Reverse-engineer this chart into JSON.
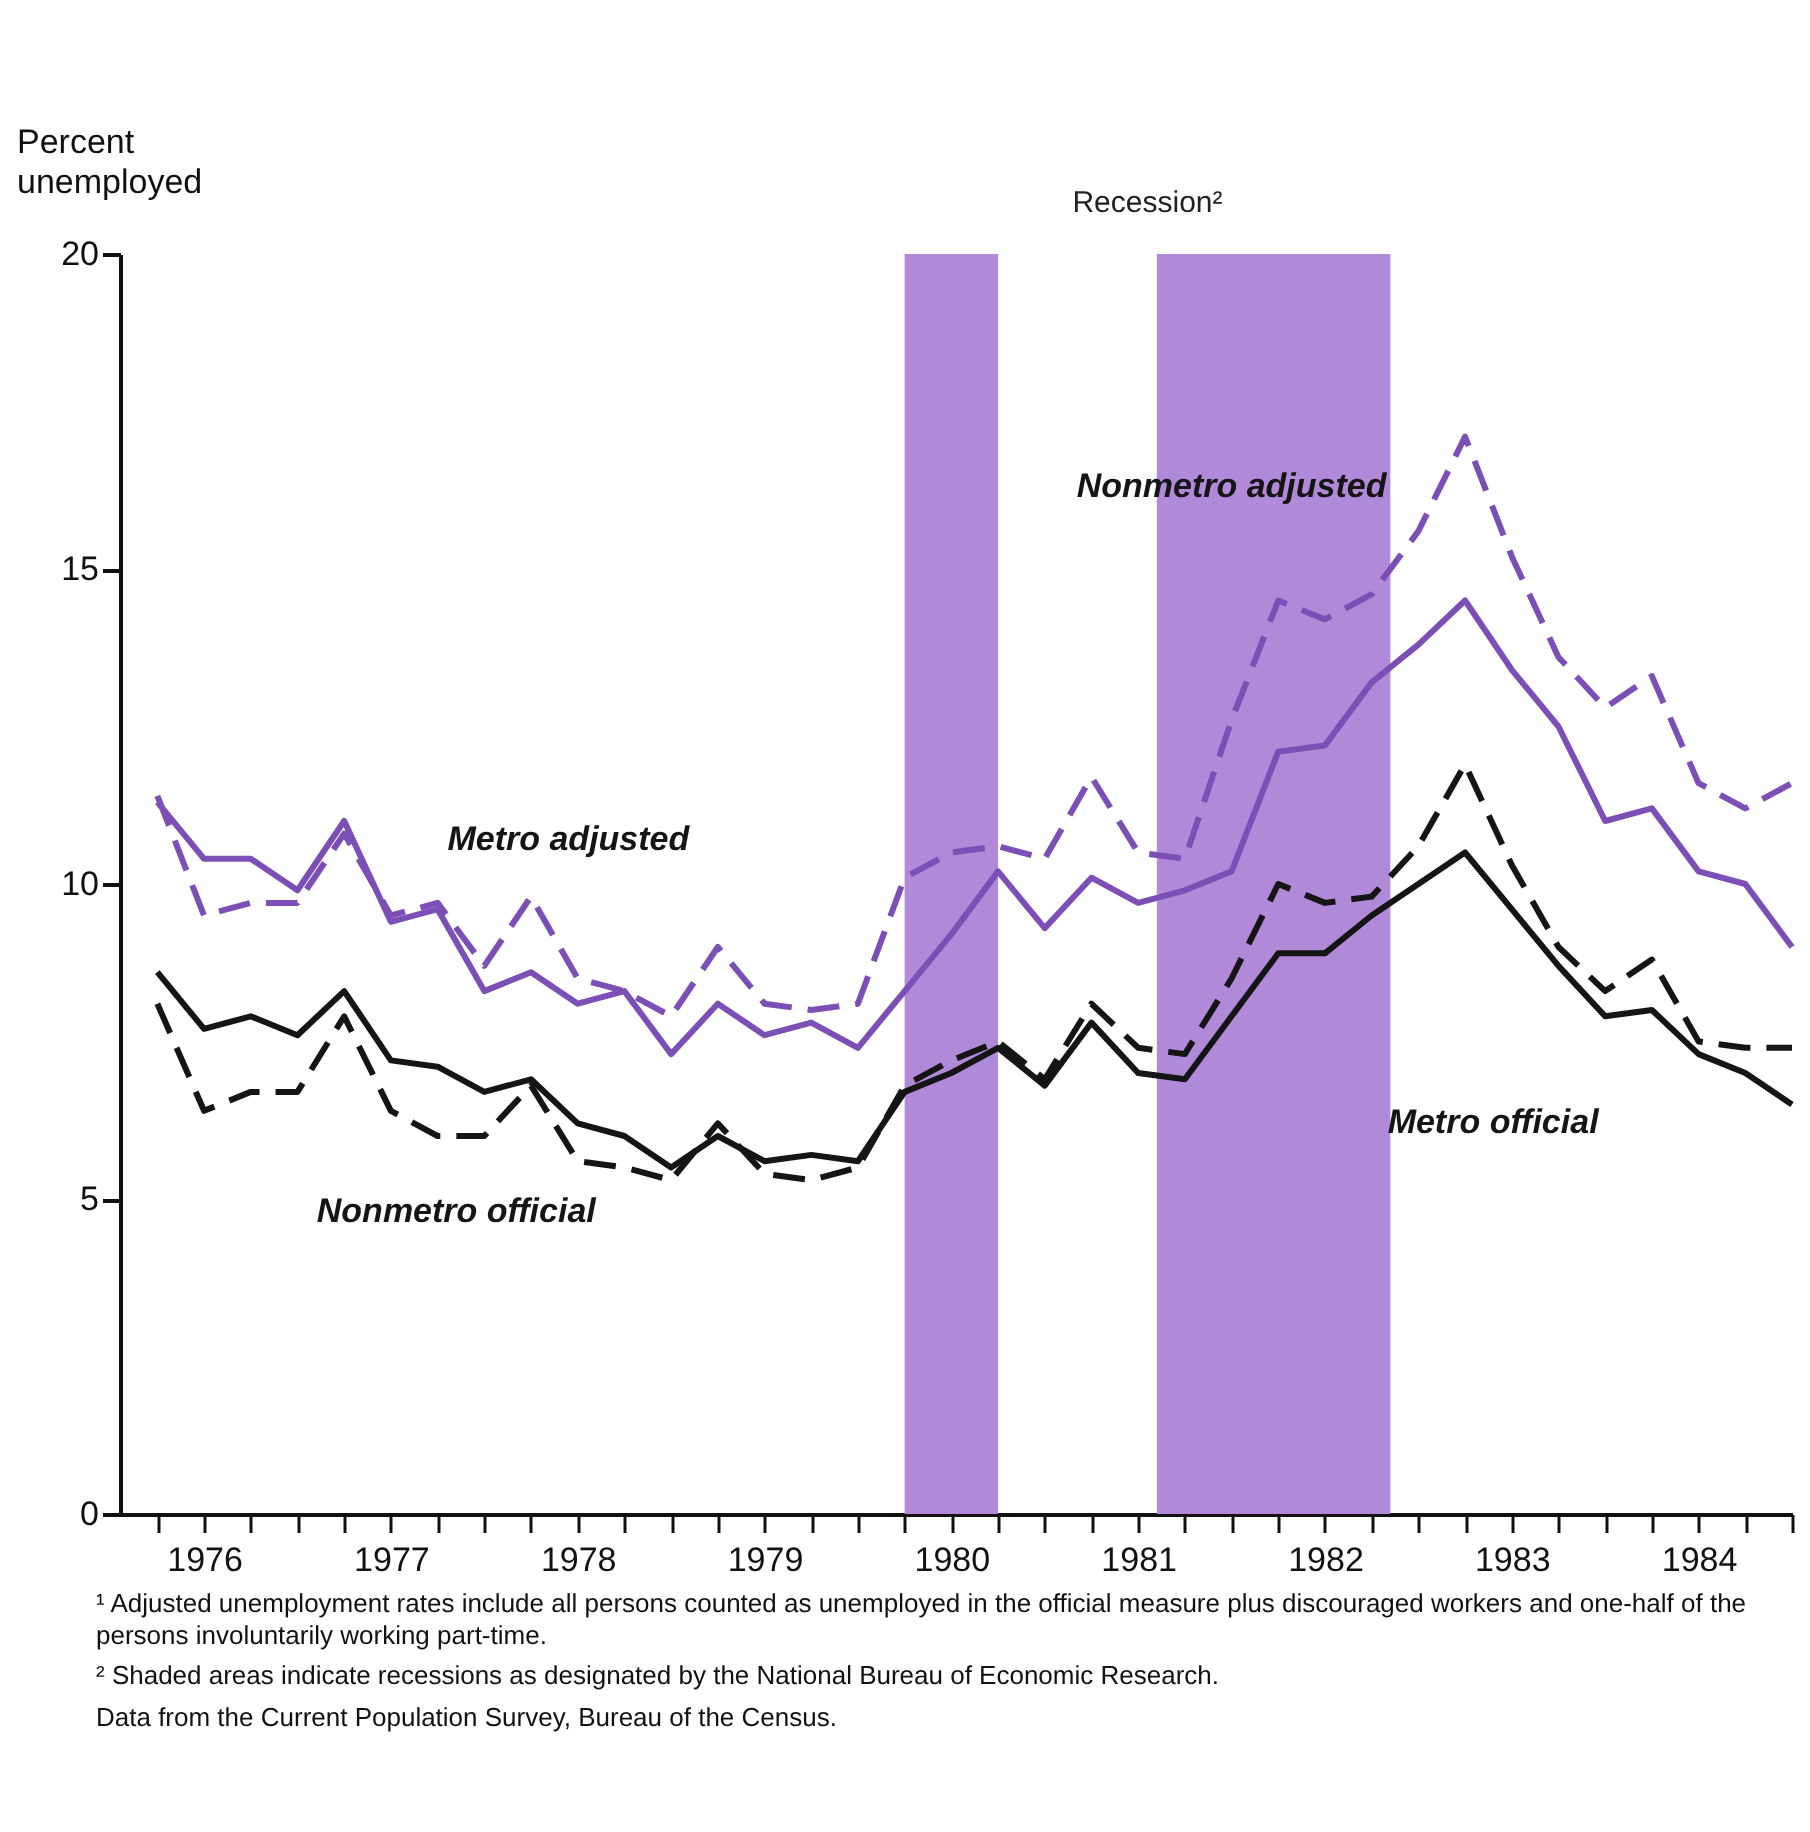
{
  "chart_data": {
    "type": "line",
    "ylabel": "Percent unemployed",
    "x": [
      1976.25,
      1976.5,
      1976.75,
      1977,
      1977.25,
      1977.5,
      1977.75,
      1978,
      1978.25,
      1978.5,
      1978.75,
      1979,
      1979.25,
      1979.5,
      1979.75,
      1980,
      1980.25,
      1980.5,
      1980.75,
      1981,
      1981.25,
      1981.5,
      1981.75,
      1982,
      1982.25,
      1982.5,
      1982.75,
      1983,
      1983.25,
      1983.5,
      1983.75,
      1984,
      1984.25,
      1984.5,
      1984.75,
      1985
    ],
    "series": [
      {
        "name": "Metro official",
        "color": "#151515",
        "line_style": "solid",
        "values": [
          8.6,
          7.7,
          7.9,
          7.6,
          8.3,
          7.2,
          7.1,
          6.7,
          6.9,
          6.2,
          6.0,
          5.5,
          6.0,
          5.6,
          5.7,
          5.6,
          6.7,
          7.0,
          7.4,
          6.8,
          7.8,
          7.0,
          6.9,
          7.9,
          8.9,
          8.9,
          9.5,
          10.0,
          10.5,
          9.6,
          8.7,
          7.9,
          8.0,
          7.3,
          7.0,
          6.5
        ]
      },
      {
        "name": "Nonmetro official",
        "color": "#151515",
        "line_style": "dashed",
        "values": [
          8.1,
          6.4,
          6.7,
          6.7,
          7.9,
          6.4,
          6.0,
          6.0,
          6.8,
          5.6,
          5.5,
          5.3,
          6.2,
          5.4,
          5.3,
          5.5,
          6.8,
          7.2,
          7.5,
          6.9,
          8.1,
          7.4,
          7.3,
          8.5,
          10.0,
          9.7,
          9.8,
          10.6,
          11.9,
          10.3,
          9.0,
          8.3,
          8.8,
          7.5,
          7.4,
          7.4
        ]
      },
      {
        "name": "Metro adjusted",
        "color": "#7b4fb5",
        "line_style": "solid",
        "values": [
          11.3,
          10.4,
          10.4,
          9.9,
          11.0,
          9.4,
          9.6,
          8.3,
          8.6,
          8.1,
          8.3,
          7.3,
          8.1,
          7.6,
          7.8,
          7.4,
          8.3,
          9.2,
          10.2,
          9.3,
          10.1,
          9.7,
          9.9,
          10.2,
          12.1,
          12.2,
          13.2,
          13.8,
          14.5,
          13.4,
          12.5,
          11.0,
          11.2,
          10.2,
          10.0,
          9.0
        ]
      },
      {
        "name": "Nonmetro adjusted",
        "color": "#7b4fb5",
        "line_style": "dashed",
        "values": [
          11.4,
          9.5,
          9.7,
          9.7,
          10.8,
          9.5,
          9.7,
          8.7,
          9.8,
          8.5,
          8.3,
          7.9,
          9.0,
          8.1,
          8.0,
          8.1,
          10.1,
          10.5,
          10.6,
          10.4,
          11.7,
          10.5,
          10.4,
          12.6,
          14.5,
          14.2,
          14.6,
          15.6,
          17.1,
          15.2,
          13.6,
          12.8,
          13.3,
          11.6,
          11.2,
          11.6
        ]
      }
    ],
    "xlim": [
      1976.05,
      1985
    ],
    "xticks": [
      {
        "value": 1976.25,
        "label": null
      },
      {
        "value": 1976.5,
        "label": "1976"
      },
      {
        "value": 1976.75,
        "label": null
      },
      {
        "value": 1977,
        "label": null
      },
      {
        "value": 1977.25,
        "label": null
      },
      {
        "value": 1977.5,
        "label": "1977"
      },
      {
        "value": 1977.75,
        "label": null
      },
      {
        "value": 1978,
        "label": null
      },
      {
        "value": 1978.25,
        "label": null
      },
      {
        "value": 1978.5,
        "label": "1978"
      },
      {
        "value": 1978.75,
        "label": null
      },
      {
        "value": 1979,
        "label": null
      },
      {
        "value": 1979.25,
        "label": null
      },
      {
        "value": 1979.5,
        "label": "1979"
      },
      {
        "value": 1979.75,
        "label": null
      },
      {
        "value": 1980,
        "label": null
      },
      {
        "value": 1980.25,
        "label": null
      },
      {
        "value": 1980.5,
        "label": "1980"
      },
      {
        "value": 1980.75,
        "label": null
      },
      {
        "value": 1981,
        "label": null
      },
      {
        "value": 1981.25,
        "label": null
      },
      {
        "value": 1981.5,
        "label": "1981"
      },
      {
        "value": 1981.75,
        "label": null
      },
      {
        "value": 1982,
        "label": null
      },
      {
        "value": 1982.25,
        "label": null
      },
      {
        "value": 1982.5,
        "label": "1982"
      },
      {
        "value": 1982.75,
        "label": null
      },
      {
        "value": 1983,
        "label": null
      },
      {
        "value": 1983.25,
        "label": null
      },
      {
        "value": 1983.5,
        "label": "1983"
      },
      {
        "value": 1983.75,
        "label": null
      },
      {
        "value": 1984,
        "label": null
      },
      {
        "value": 1984.25,
        "label": null
      },
      {
        "value": 1984.5,
        "label": "1984"
      },
      {
        "value": 1984.75,
        "label": null
      },
      {
        "value": 1985,
        "label": null
      }
    ],
    "ylim": [
      0,
      20
    ],
    "yticks": [
      0,
      5,
      10,
      15,
      20
    ],
    "bands": [
      {
        "axis": "x",
        "from": 1980.25,
        "to": 1980.75,
        "label": "Recession²",
        "color": "#b08ad8"
      },
      {
        "axis": "x",
        "from": 1981.6,
        "to": 1982.85,
        "color": "#b08ad8"
      }
    ],
    "grid": false,
    "legend": false,
    "marker": "none",
    "annotations": [
      "¹ Adjusted unemployment rates include all persons counted as unemployed in the official measure plus discouraged workers and one-half of the persons involuntarily working part-time.",
      "² Shaded areas indicate recessions as designated by the National Bureau of Economic Research.",
      "Data from the Current Population Survey, Bureau of the Census."
    ]
  }
}
